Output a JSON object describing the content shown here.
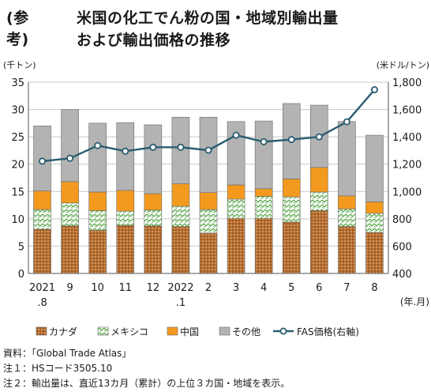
{
  "title": {
    "ref": "(参考)",
    "line1": "米国の化工でん粉の国・地域別輸出量",
    "line2": "および輸出価格の推移"
  },
  "chart_data": {
    "type": "bar",
    "stacked": true,
    "title": "米国の化工でん粉の国・地域別輸出量および輸出価格の推移",
    "categories": [
      "2021\n.8",
      "9",
      "10",
      "11",
      "12",
      "2022\n.1",
      "2",
      "3",
      "4",
      "5",
      "6",
      "7",
      "8"
    ],
    "left_axis": {
      "unit": "(千トン)",
      "ylim": [
        0,
        35
      ],
      "ticks": [
        0,
        5,
        10,
        15,
        20,
        25,
        30,
        35
      ]
    },
    "right_axis": {
      "unit": "(米ドル/トン)",
      "ylim": [
        400,
        1800
      ],
      "ticks": [
        400,
        600,
        800,
        1000,
        1200,
        1400,
        1600,
        1800
      ]
    },
    "x_unit": "(年.月)",
    "series": [
      {
        "name": "カナダ",
        "axis": "left",
        "color": "#b86e2e",
        "pattern": "dots",
        "values": [
          8.1,
          8.7,
          7.9,
          8.8,
          8.7,
          8.6,
          7.4,
          10.1,
          10.1,
          9.4,
          11.5,
          8.6,
          7.5
        ]
      },
      {
        "name": "メキシコ",
        "axis": "left",
        "color": "#5aa84a",
        "pattern": "zigzag",
        "values": [
          3.6,
          4.2,
          3.6,
          2.6,
          2.9,
          3.7,
          4.3,
          3.5,
          4.0,
          4.6,
          3.4,
          3.2,
          3.5
        ]
      },
      {
        "name": "中国",
        "axis": "left",
        "color": "#f39a1e",
        "values": [
          3.4,
          3.9,
          3.4,
          3.8,
          3.0,
          4.1,
          3.1,
          2.6,
          1.4,
          3.3,
          4.5,
          2.4,
          2.1
        ]
      },
      {
        "name": "その他",
        "axis": "left",
        "color": "#b3b3b3",
        "values": [
          11.9,
          13.2,
          12.6,
          12.4,
          12.6,
          12.2,
          13.8,
          11.6,
          12.4,
          13.8,
          11.4,
          13.6,
          12.2
        ]
      },
      {
        "name": "FAS価格(右軸)",
        "axis": "right",
        "type": "line",
        "color": "#2a5c70",
        "values": [
          1222,
          1243,
          1336,
          1295,
          1324,
          1324,
          1302,
          1412,
          1364,
          1380,
          1400,
          1510,
          1745
        ]
      }
    ],
    "legend_position": "bottom",
    "grid": true
  },
  "notes": [
    "資料：「Global Trade Atlas」",
    "注１：HSコード3505.10",
    "注２：輸出量は、直近13カ月（累計）の上位３カ国・地域を表示。"
  ]
}
